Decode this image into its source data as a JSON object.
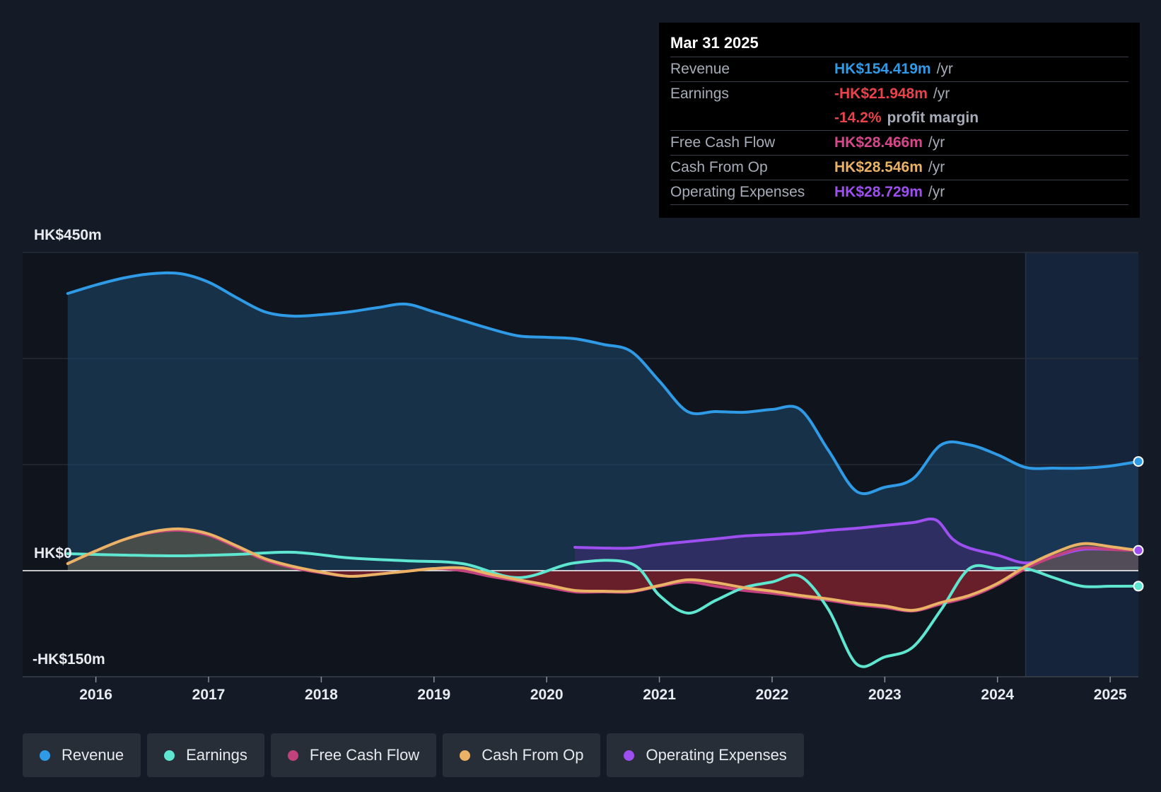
{
  "tooltip": {
    "date": "Mar 31 2025",
    "rows": [
      {
        "label": "Revenue",
        "value": "HK$154.419m",
        "unit": "/yr",
        "color": "#2f9be6"
      },
      {
        "label": "Earnings",
        "value": "-HK$21.948m",
        "unit": "/yr",
        "color": "#e8434b"
      },
      {
        "label": "",
        "value": "-14.2%",
        "unit": "profit margin",
        "color": "#e8434b"
      },
      {
        "label": "Free Cash Flow",
        "value": "HK$28.466m",
        "unit": "/yr",
        "color": "#d6478b"
      },
      {
        "label": "Cash From Op",
        "value": "HK$28.546m",
        "unit": "/yr",
        "color": "#e9b265"
      },
      {
        "label": "Operating Expenses",
        "value": "HK$28.729m",
        "unit": "/yr",
        "color": "#9d4ff0"
      }
    ]
  },
  "legend": [
    {
      "label": "Revenue",
      "color": "#2f9be6"
    },
    {
      "label": "Earnings",
      "color": "#5ee6d0"
    },
    {
      "label": "Free Cash Flow",
      "color": "#c2427d"
    },
    {
      "label": "Cash From Op",
      "color": "#e9b265"
    },
    {
      "label": "Operating Expenses",
      "color": "#9d4ff0"
    }
  ],
  "chart_data": {
    "type": "area",
    "title": "",
    "currency": "HK$",
    "y_tick_labels": [
      "HK$450m",
      "HK$0",
      "-HK$150m"
    ],
    "ylim": [
      -150,
      450
    ],
    "xlim": [
      2015.35,
      2025.25
    ],
    "x_tick_labels": [
      "2016",
      "2017",
      "2018",
      "2019",
      "2020",
      "2021",
      "2022",
      "2023",
      "2024",
      "2025"
    ],
    "x_ticks": [
      2016,
      2017,
      2018,
      2019,
      2020,
      2021,
      2022,
      2023,
      2024,
      2025
    ],
    "forecast_start": 2024.25,
    "series": [
      {
        "name": "Revenue",
        "color": "#2f9be6",
        "x": [
          2015.75,
          2016.0,
          2016.25,
          2016.5,
          2016.75,
          2017.0,
          2017.25,
          2017.5,
          2017.75,
          2018.0,
          2018.25,
          2018.5,
          2018.75,
          2019.0,
          2019.25,
          2019.5,
          2019.75,
          2020.0,
          2020.25,
          2020.5,
          2020.75,
          2021.0,
          2021.25,
          2021.5,
          2021.75,
          2022.0,
          2022.25,
          2022.5,
          2022.75,
          2023.0,
          2023.25,
          2023.5,
          2023.75,
          2024.0,
          2024.25,
          2024.5,
          2024.75,
          2025.0,
          2025.25
        ],
        "values": [
          392,
          404,
          414,
          420,
          420,
          408,
          386,
          366,
          360,
          362,
          366,
          372,
          377,
          366,
          354,
          342,
          332,
          330,
          328,
          320,
          310,
          268,
          225,
          225,
          224,
          228,
          228,
          170,
          112,
          118,
          130,
          178,
          178,
          164,
          146,
          145,
          145,
          148,
          154.4
        ]
      },
      {
        "name": "Earnings",
        "color": "#5ee6d0",
        "x": [
          2015.75,
          2016.25,
          2016.75,
          2017.25,
          2017.75,
          2018.25,
          2018.75,
          2019.25,
          2019.75,
          2020.25,
          2020.75,
          2021.0,
          2021.25,
          2021.5,
          2021.75,
          2022.0,
          2022.25,
          2022.5,
          2022.75,
          2023.0,
          2023.25,
          2023.5,
          2023.75,
          2024.0,
          2024.25,
          2024.5,
          2024.75,
          2025.0,
          2025.25
        ],
        "values": [
          24,
          22,
          21,
          23,
          26,
          18,
          14,
          10,
          -10,
          11,
          10,
          -35,
          -60,
          -42,
          -24,
          -16,
          -8,
          -55,
          -132,
          -122,
          -108,
          -55,
          3,
          3,
          3,
          -10,
          -22,
          -22,
          -21.9
        ]
      },
      {
        "name": "Free Cash Flow",
        "color": "#c2427d",
        "x": [
          2015.75,
          2016.0,
          2016.25,
          2016.5,
          2016.75,
          2017.0,
          2017.25,
          2017.5,
          2017.75,
          2018.0,
          2018.25,
          2018.5,
          2018.75,
          2019.0,
          2019.25,
          2019.5,
          2019.75,
          2020.0,
          2020.25,
          2020.5,
          2020.75,
          2021.0,
          2021.25,
          2021.5,
          2021.75,
          2022.0,
          2022.25,
          2022.5,
          2022.75,
          2023.0,
          2023.25,
          2023.5,
          2023.75,
          2024.0,
          2024.25,
          2024.5,
          2024.75,
          2025.0,
          2025.25
        ],
        "values": [
          10,
          28,
          44,
          54,
          57,
          50,
          33,
          15,
          4,
          -3,
          -8,
          -5,
          -1,
          3,
          0,
          -8,
          -15,
          -23,
          -30,
          -30,
          -30,
          -22,
          -16,
          -22,
          -28,
          -32,
          -37,
          -42,
          -48,
          -52,
          -57,
          -47,
          -37,
          -20,
          3,
          20,
          32,
          30,
          28.5
        ]
      },
      {
        "name": "Cash From Op",
        "color": "#e9b265",
        "x": [
          2015.75,
          2016.0,
          2016.25,
          2016.5,
          2016.75,
          2017.0,
          2017.25,
          2017.5,
          2017.75,
          2018.0,
          2018.25,
          2018.5,
          2018.75,
          2019.0,
          2019.25,
          2019.5,
          2019.75,
          2020.0,
          2020.25,
          2020.5,
          2020.75,
          2021.0,
          2021.25,
          2021.5,
          2021.75,
          2022.0,
          2022.25,
          2022.5,
          2022.75,
          2023.0,
          2023.25,
          2023.5,
          2023.75,
          2024.0,
          2024.25,
          2024.5,
          2024.75,
          2025.0,
          2025.25
        ],
        "values": [
          10,
          28,
          44,
          55,
          59,
          52,
          35,
          17,
          6,
          -2,
          -8,
          -5,
          -1,
          3,
          4,
          -5,
          -13,
          -20,
          -28,
          -29,
          -29,
          -21,
          -13,
          -17,
          -24,
          -29,
          -35,
          -40,
          -46,
          -50,
          -56,
          -45,
          -35,
          -18,
          6,
          25,
          38,
          34,
          28.5
        ]
      },
      {
        "name": "Operating Expenses",
        "color": "#9d4ff0",
        "x": [
          2020.25,
          2020.5,
          2020.75,
          2021.0,
          2021.25,
          2021.5,
          2021.75,
          2022.0,
          2022.25,
          2022.5,
          2022.75,
          2023.0,
          2023.25,
          2023.45,
          2023.6,
          2023.75,
          2024.0,
          2024.25,
          2024.5,
          2024.75,
          2025.0,
          2025.25
        ],
        "values": [
          33,
          32,
          32,
          37,
          41,
          45,
          49,
          51,
          53,
          57,
          60,
          64,
          68,
          72,
          45,
          32,
          22,
          11,
          20,
          30,
          30,
          28.7
        ]
      }
    ]
  }
}
